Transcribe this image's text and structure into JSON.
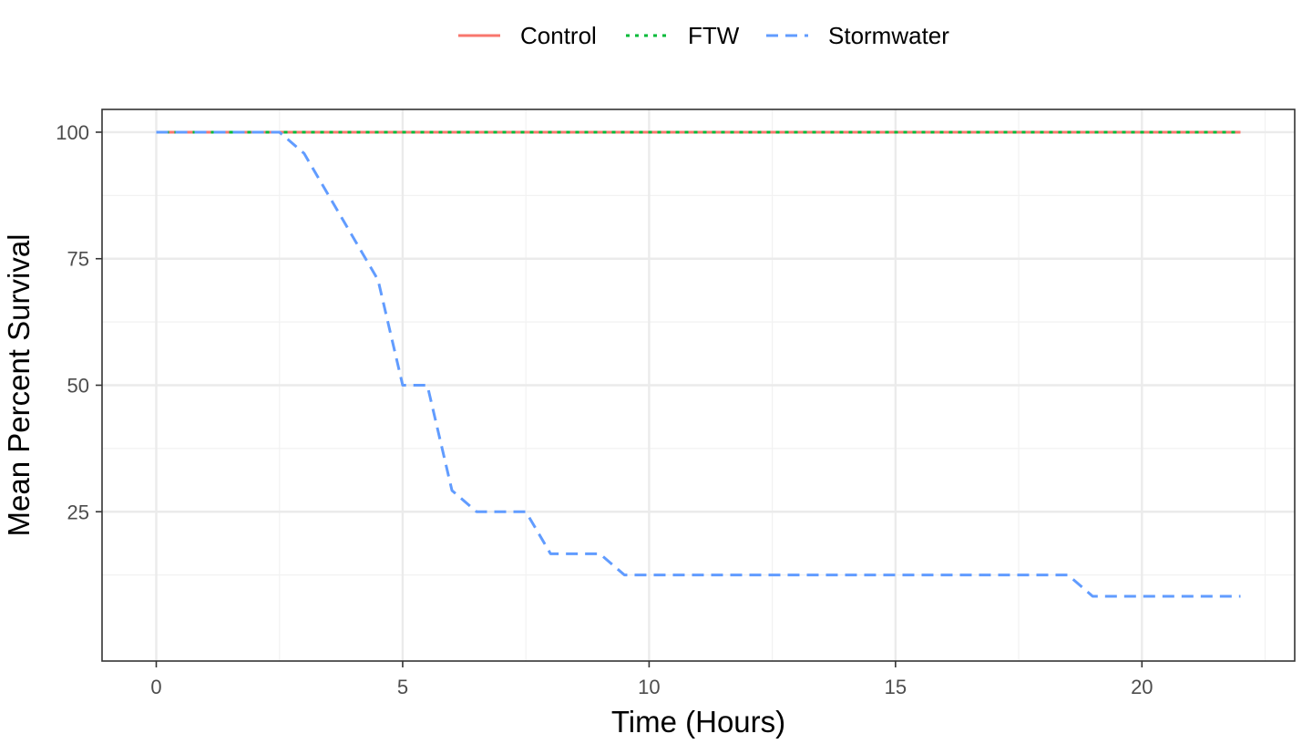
{
  "chart_data": {
    "type": "line",
    "xlabel": "Time (Hours)",
    "ylabel": "Mean Percent Survival",
    "xlim": [
      -1.1,
      23.1
    ],
    "ylim": [
      -4.5,
      104.5
    ],
    "x_ticks": [
      0,
      5,
      10,
      15,
      20
    ],
    "y_ticks": [
      25,
      50,
      75,
      100
    ],
    "x_tick_labels": [
      "0",
      "5",
      "10",
      "15",
      "20"
    ],
    "y_tick_labels": [
      "25",
      "50",
      "75",
      "100"
    ],
    "grid": true,
    "legend": {
      "position": "top",
      "entries": [
        "Control",
        "FTW",
        "Stormwater"
      ]
    },
    "series": [
      {
        "name": "Control",
        "color": "#F8766D",
        "linetype": "solid",
        "x": [
          0,
          22
        ],
        "y": [
          100,
          100
        ]
      },
      {
        "name": "FTW",
        "color": "#00BA38",
        "linetype": "dotted",
        "x": [
          0,
          22
        ],
        "y": [
          100,
          100
        ]
      },
      {
        "name": "Stormwater",
        "color": "#619CFF",
        "linetype": "dashed",
        "x": [
          0,
          2.5,
          3,
          4.5,
          5,
          5.5,
          6,
          6.5,
          7.5,
          8,
          9,
          9.5,
          18.5,
          19,
          22
        ],
        "y": [
          100,
          100,
          95.8,
          70.8,
          50,
          50,
          29.2,
          25,
          25,
          16.7,
          16.7,
          12.5,
          12.5,
          8.3,
          8.3
        ]
      }
    ]
  }
}
